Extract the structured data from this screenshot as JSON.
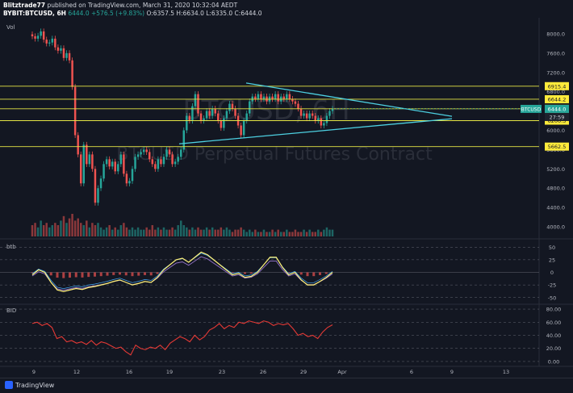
{
  "header": {
    "author": "Blitztrade77",
    "published_text": "published on TradingView.com, March 31, 2020 10:32:04 AEDT",
    "symbol": "BYBIT:BTCUSD, 6H",
    "price": "6444.0",
    "change": "+576.5 (+9.83%)",
    "ohlc": "O:6357.5 H:6634.0 L:6335.0 C:6444.0"
  },
  "watermark": {
    "symbol": "BTCUSD, 6H",
    "description": "BTCUSD Perpetual Futures Contract"
  },
  "footer": {
    "logo_text": "TradingView"
  },
  "colors": {
    "background": "#131722",
    "up": "#26a69a",
    "down": "#ef5350",
    "level_line": "#e5e545",
    "triangle": "#4dd0e1",
    "label_bg": "#ffeb3b",
    "price_label_bg": "#26a69a"
  },
  "chart_data": [
    {
      "type": "candlestick",
      "title": "BYBIT:BTCUSD, 6H",
      "ylabel": "",
      "volume_label": "Vol",
      "ylim": [
        3800,
        8300
      ],
      "x_tick_labels": [
        "9",
        "12",
        "16",
        "19",
        "23",
        "26",
        "29",
        "Apr",
        "6",
        "9",
        "13"
      ],
      "y_tick_labels": [
        "8000.0",
        "7600.0",
        "7200.0",
        "6800.0",
        "6400.0",
        "6000.0",
        "5600.0",
        "5200.0",
        "4800.0",
        "4400.0",
        "4000.0"
      ],
      "price_levels": [
        {
          "label": "6915.4",
          "value": 6915.4
        },
        {
          "label": "6644.2",
          "value": 6644.2
        },
        {
          "label": "6445.6",
          "value": 6445.6
        },
        {
          "label": "6200.5",
          "value": 6200.5
        },
        {
          "label": "5662.5",
          "value": 5662.5
        }
      ],
      "current_price": {
        "symbol": "BTCUSD",
        "value": "6444.0",
        "countdown": "27:59"
      },
      "triangle": {
        "upper": [
          {
            "x": "Mar 20",
            "y": 6980
          },
          {
            "x": "Apr 9",
            "y": 6290
          }
        ],
        "lower": [
          {
            "x": "Mar 19",
            "y": 5720
          },
          {
            "x": "Apr 9",
            "y": 6240
          }
        ]
      },
      "candles_close": [
        7950,
        7900,
        7960,
        8050,
        7880,
        7800,
        7820,
        7900,
        7720,
        7650,
        7700,
        7500,
        7600,
        7450,
        6900,
        5900,
        5500,
        4900,
        5700,
        5300,
        5500,
        5200,
        4500,
        4800,
        5000,
        5300,
        5400,
        5250,
        5350,
        5150,
        5300,
        5500,
        5100,
        4900,
        4950,
        5200,
        5450,
        5500,
        5550,
        5600,
        5550,
        5400,
        5300,
        5200,
        5400,
        5300,
        5450,
        5600,
        5500,
        5300,
        5350,
        5450,
        5600,
        6000,
        6300,
        6200,
        6500,
        6750,
        6350,
        6200,
        6250,
        6400,
        6300,
        6450,
        6350,
        6200,
        6050,
        6250,
        6400,
        6550,
        6450,
        6300,
        6100,
        5900,
        6200,
        6350,
        6600,
        6700,
        6650,
        6750,
        6650,
        6700,
        6600,
        6700,
        6650,
        6750,
        6600,
        6700,
        6650,
        6750,
        6650,
        6600,
        6550,
        6450,
        6300,
        6350,
        6250,
        6350,
        6300,
        6200,
        6250,
        6100,
        6150,
        6300,
        6400,
        6444
      ],
      "volume_relative": [
        0.5,
        0.6,
        0.4,
        0.7,
        0.5,
        0.6,
        0.4,
        0.5,
        0.6,
        0.5,
        0.7,
        0.9,
        0.6,
        0.8,
        1.0,
        0.7,
        0.8,
        0.6,
        0.5,
        0.7,
        0.4,
        0.6,
        0.5,
        0.6,
        0.4,
        0.3,
        0.4,
        0.5,
        0.3,
        0.4,
        0.3,
        0.5,
        0.6,
        0.4,
        0.3,
        0.4,
        0.3,
        0.4,
        0.3,
        0.3,
        0.4,
        0.3,
        0.5,
        0.3,
        0.4,
        0.3,
        0.4,
        0.3,
        0.3,
        0.4,
        0.3,
        0.5,
        0.7,
        0.5,
        0.4,
        0.3,
        0.4,
        0.3,
        0.4,
        0.3,
        0.3,
        0.4,
        0.3,
        0.4,
        0.3,
        0.3,
        0.4,
        0.3,
        0.4,
        0.3,
        0.2,
        0.3,
        0.3,
        0.4,
        0.3,
        0.2,
        0.3,
        0.2,
        0.3,
        0.2,
        0.2,
        0.3,
        0.2,
        0.2,
        0.3,
        0.2,
        0.3,
        0.2,
        0.2,
        0.3,
        0.2,
        0.2,
        0.3,
        0.2,
        0.2,
        0.3,
        0.2,
        0.3,
        0.2,
        0.2,
        0.3,
        0.2,
        0.3,
        0.4,
        0.3,
        0.3
      ]
    },
    {
      "type": "line",
      "title": "btb",
      "ylim": [
        -60,
        60
      ],
      "y_tick_labels": [
        "50",
        "25",
        "0",
        "-25",
        "-50"
      ],
      "series": [
        {
          "name": "",
          "values": [
            -5,
            5,
            0,
            -20,
            -35,
            -38,
            -35,
            -32,
            -34,
            -30,
            -28,
            -25,
            -22,
            -18,
            -15,
            -20,
            -25,
            -22,
            -18,
            -20,
            -10,
            5,
            15,
            25,
            28,
            20,
            30,
            40,
            35,
            25,
            15,
            5,
            -5,
            -2,
            -10,
            -8,
            0,
            15,
            30,
            30,
            10,
            -5,
            0,
            -15,
            -25,
            -25,
            -18,
            -10,
            0
          ]
        }
      ]
    },
    {
      "type": "line",
      "title": "BID",
      "ylim": [
        -5,
        85
      ],
      "y_tick_labels": [
        "80.00",
        "60.00",
        "40.00",
        "20.00",
        "0.00"
      ],
      "series": [
        {
          "name": "",
          "values": [
            58,
            60,
            55,
            58,
            52,
            35,
            38,
            30,
            32,
            28,
            30,
            26,
            32,
            25,
            30,
            28,
            24,
            20,
            22,
            15,
            10,
            25,
            20,
            18,
            22,
            20,
            25,
            18,
            28,
            33,
            38,
            35,
            30,
            40,
            33,
            38,
            48,
            52,
            58,
            50,
            55,
            52,
            60,
            58,
            62,
            60,
            58,
            62,
            60,
            55,
            58,
            56,
            58,
            50,
            40,
            43,
            38,
            40,
            35,
            45,
            52,
            56
          ]
        }
      ]
    }
  ]
}
